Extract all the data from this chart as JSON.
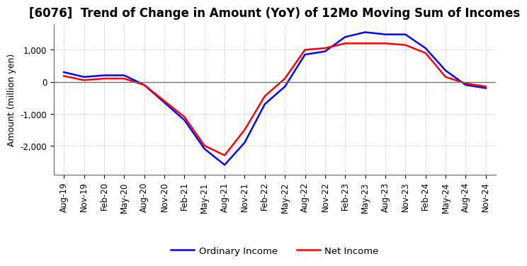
{
  "title": "[6076]  Trend of Change in Amount (YoY) of 12Mo Moving Sum of Incomes",
  "ylabel": "Amount (million yen)",
  "legend": [
    "Ordinary Income",
    "Net Income"
  ],
  "line_colors": [
    "blue",
    "red"
  ],
  "x_labels": [
    "Aug-19",
    "Nov-19",
    "Feb-20",
    "May-20",
    "Aug-20",
    "Nov-20",
    "Feb-21",
    "May-21",
    "Aug-21",
    "Nov-21",
    "Feb-22",
    "May-22",
    "Aug-22",
    "Nov-22",
    "Feb-23",
    "May-23",
    "Aug-23",
    "Nov-23",
    "Feb-24",
    "May-24",
    "Aug-24",
    "Nov-24"
  ],
  "ordinary_income": [
    300,
    150,
    200,
    200,
    -100,
    -650,
    -1200,
    -2100,
    -2600,
    -1900,
    -700,
    -150,
    850,
    950,
    1400,
    1550,
    1480,
    1480,
    1050,
    350,
    -100,
    -200
  ],
  "net_income": [
    180,
    50,
    100,
    100,
    -100,
    -600,
    -1100,
    -2000,
    -2300,
    -1500,
    -450,
    100,
    1000,
    1050,
    1200,
    1200,
    1200,
    1150,
    900,
    150,
    -50,
    -150
  ],
  "ylim": [
    -2900,
    1800
  ],
  "yticks": [
    -2000,
    -1000,
    0,
    1000
  ],
  "background_color": "#ffffff",
  "grid_color": "#aaaaaa",
  "title_fontsize": 12,
  "axis_fontsize": 9,
  "tick_fontsize": 8.5
}
